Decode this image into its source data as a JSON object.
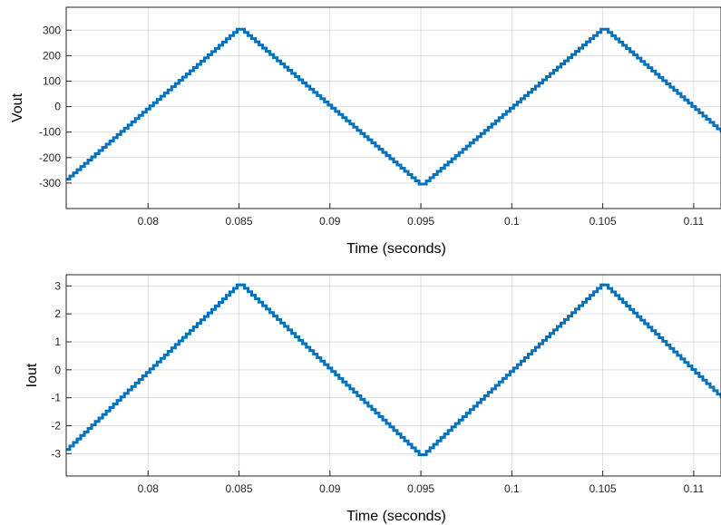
{
  "colors": {
    "background": "#ffffff",
    "line": "#0072BD",
    "grid": "#262626",
    "axes": "#262626"
  },
  "chart_data": [
    {
      "type": "line",
      "title": "",
      "xlabel": "Time (seconds)",
      "ylabel": "Vout",
      "xlim": [
        0.0755,
        0.1115
      ],
      "ylim": [
        -400,
        390
      ],
      "x_ticks": [
        0.08,
        0.085,
        0.09,
        0.095,
        0.1,
        0.105,
        0.11
      ],
      "x_tick_labels": [
        "0.08",
        "0.085",
        "0.09",
        "0.095",
        "0.1",
        "0.105",
        "0.11"
      ],
      "y_ticks": [
        -300,
        -200,
        -100,
        0,
        100,
        200,
        300
      ],
      "y_tick_labels": [
        "-300",
        "-200",
        "-100",
        "0",
        "100",
        "200",
        "300"
      ],
      "grid": true,
      "legend": "none",
      "series": [
        {
          "line_style": "staircase",
          "x": [
            0.0755,
            0.085,
            0.095,
            0.105,
            0.1115
          ],
          "y": [
            -285,
            310,
            -310,
            310,
            -100
          ]
        }
      ]
    },
    {
      "type": "line",
      "title": "",
      "xlabel": "Time (seconds)",
      "ylabel": "Iout",
      "xlim": [
        0.0755,
        0.1115
      ],
      "ylim": [
        -3.8,
        3.4
      ],
      "x_ticks": [
        0.08,
        0.085,
        0.09,
        0.095,
        0.1,
        0.105,
        0.11
      ],
      "x_tick_labels": [
        "0.08",
        "0.085",
        "0.09",
        "0.095",
        "0.1",
        "0.105",
        "0.11"
      ],
      "y_ticks": [
        -3,
        -2,
        -1,
        0,
        1,
        2,
        3
      ],
      "y_tick_labels": [
        "-3",
        "-2",
        "-1",
        "0",
        "1",
        "2",
        "3"
      ],
      "grid": true,
      "legend": "none",
      "series": [
        {
          "line_style": "staircase",
          "x": [
            0.0755,
            0.085,
            0.095,
            0.105,
            0.1115
          ],
          "y": [
            -2.85,
            3.1,
            -3.1,
            3.1,
            -1.0
          ]
        }
      ]
    }
  ]
}
